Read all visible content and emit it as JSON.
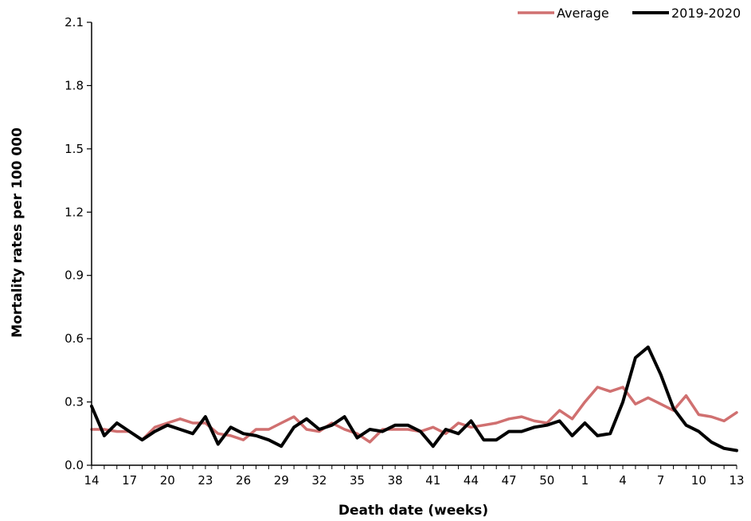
{
  "chart_data": {
    "type": "line",
    "xlabel": "Death date (weeks)",
    "ylabel": "Mortality rates per 100 000",
    "ylim": [
      0,
      2.1
    ],
    "yticks": [
      "0.0",
      "0.3",
      "0.6",
      "0.9",
      "1.2",
      "1.5",
      "1.8",
      "2.1"
    ],
    "grid": false,
    "legend_position": "top-right",
    "weeks": [
      14,
      15,
      16,
      17,
      18,
      19,
      20,
      21,
      22,
      23,
      24,
      25,
      26,
      27,
      28,
      29,
      30,
      31,
      32,
      33,
      34,
      35,
      36,
      37,
      38,
      39,
      40,
      41,
      42,
      43,
      44,
      45,
      46,
      47,
      48,
      49,
      50,
      51,
      52,
      1,
      2,
      3,
      4,
      5,
      6,
      7,
      8,
      9,
      10,
      11,
      12,
      13
    ],
    "xtick_labels": [
      "14",
      "17",
      "20",
      "23",
      "26",
      "29",
      "32",
      "35",
      "38",
      "41",
      "44",
      "47",
      "50",
      "1",
      "4",
      "7",
      "10",
      "13"
    ],
    "series": [
      {
        "name": "Average",
        "color": "#d07070",
        "values": [
          0.17,
          0.17,
          0.16,
          0.16,
          0.12,
          0.18,
          0.2,
          0.22,
          0.2,
          0.2,
          0.15,
          0.14,
          0.12,
          0.17,
          0.17,
          0.2,
          0.23,
          0.17,
          0.16,
          0.2,
          0.17,
          0.15,
          0.11,
          0.17,
          0.17,
          0.17,
          0.16,
          0.18,
          0.15,
          0.2,
          0.18,
          0.19,
          0.2,
          0.22,
          0.23,
          0.21,
          0.2,
          0.26,
          0.22,
          0.3,
          0.37,
          0.35,
          0.37,
          0.29,
          0.32,
          0.29,
          0.26,
          0.33,
          0.24,
          0.23,
          0.21,
          0.25
        ]
      },
      {
        "name": "2019-2020",
        "color": "#000000",
        "values": [
          0.28,
          0.14,
          0.2,
          0.16,
          0.12,
          0.16,
          0.19,
          0.17,
          0.15,
          0.23,
          0.1,
          0.18,
          0.15,
          0.14,
          0.12,
          0.09,
          0.18,
          0.22,
          0.17,
          0.19,
          0.23,
          0.13,
          0.17,
          0.16,
          0.19,
          0.19,
          0.16,
          0.09,
          0.17,
          0.15,
          0.21,
          0.12,
          0.12,
          0.16,
          0.16,
          0.18,
          0.19,
          0.21,
          0.14,
          0.2,
          0.14,
          0.15,
          0.3,
          0.51,
          0.56,
          0.43,
          0.27,
          0.19,
          0.16,
          0.11,
          0.08,
          0.07
        ]
      }
    ]
  }
}
